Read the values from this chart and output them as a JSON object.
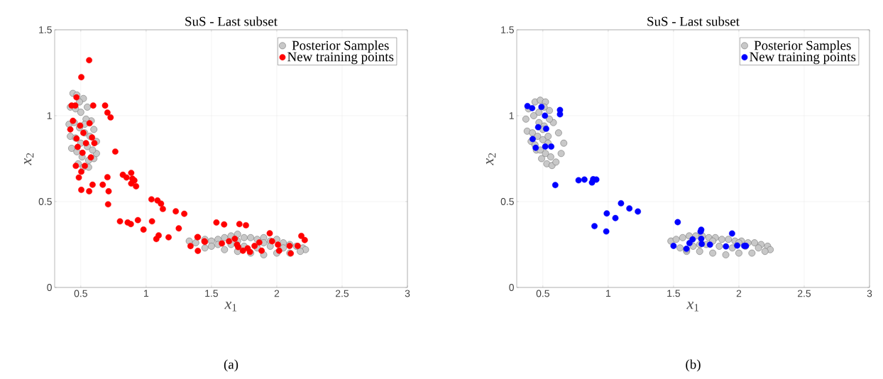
{
  "chart_data": [
    {
      "type": "scatter",
      "title": "SuS - Last subset",
      "xlabel": "*x*$_{1}$",
      "ylabel": "*x*$_{2}$",
      "annotations": [
        "(a)"
      ],
      "xlim": [
        0.3,
        3
      ],
      "ylim": [
        0,
        1.5
      ],
      "xticks": [
        0.5,
        1,
        1.5,
        2,
        2.5,
        3
      ],
      "yticks": [
        0,
        0.5,
        1,
        1.5
      ],
      "grid": true,
      "legend": "top right",
      "marker": "circle",
      "series": [
        {
          "name": "Posterior Samples",
          "color": "#c8c8c8",
          "x": [
            0.44,
            0.47,
            0.42,
            0.41,
            0.42,
            0.43,
            0.48,
            0.52,
            0.56,
            0.6,
            0.62,
            0.62,
            0.6,
            0.58,
            0.55,
            0.52,
            0.46,
            0.5,
            0.54,
            0.45,
            0.49,
            0.53,
            0.57,
            0.46,
            0.5,
            0.55,
            0.59,
            0.47,
            0.51,
            0.56,
            0.49,
            0.53,
            1.33,
            1.38,
            1.45,
            1.5,
            1.55,
            1.6,
            1.65,
            1.7,
            1.75,
            1.8,
            1.85,
            1.9,
            1.95,
            2.0,
            2.05,
            2.1,
            2.15,
            2.2,
            2.22,
            2.18,
            2.1,
            2.0,
            1.9,
            1.8,
            1.7,
            1.6,
            1.5,
            1.45,
            1.65,
            1.75,
            1.85,
            1.95,
            2.05,
            1.55,
            1.7,
            1.9
          ],
          "values": [
            1.13,
            1.12,
            1.05,
            0.95,
            0.88,
            0.81,
            0.72,
            0.7,
            0.7,
            0.75,
            0.78,
            0.85,
            0.92,
            0.97,
            1.05,
            1.1,
            1.04,
            1.02,
            0.98,
            0.96,
            0.93,
            0.9,
            0.88,
            0.87,
            0.84,
            0.82,
            0.8,
            0.79,
            0.76,
            0.74,
            1.08,
            0.95,
            0.27,
            0.26,
            0.28,
            0.27,
            0.28,
            0.29,
            0.3,
            0.31,
            0.29,
            0.29,
            0.28,
            0.29,
            0.27,
            0.28,
            0.26,
            0.25,
            0.24,
            0.23,
            0.22,
            0.21,
            0.2,
            0.2,
            0.19,
            0.2,
            0.21,
            0.22,
            0.24,
            0.23,
            0.25,
            0.24,
            0.23,
            0.24,
            0.23,
            0.25,
            0.27,
            0.26
          ]
        },
        {
          "name": "New training points",
          "color": "#ff0000",
          "x": [
            0.564,
            0.504,
            0.467,
            0.595,
            0.686,
            0.704,
            0.728,
            0.43,
            0.458,
            0.44,
            0.495,
            0.567,
            0.42,
            0.52,
            0.586,
            0.467,
            0.54,
            0.604,
            0.476,
            0.513,
            0.577,
            0.462,
            0.531,
            0.504,
            0.485,
            0.504,
            0.564,
            0.59,
            0.668,
            0.704,
            0.713,
            0.709,
            0.764,
            0.822,
            0.85,
            0.886,
            0.895,
            0.91,
            0.886,
            0.923,
            0.8,
            0.859,
            0.883,
            0.937,
            0.98,
            1.041,
            1.087,
            1.114,
            1.128,
            1.045,
            1.096,
            1.078,
            1.172,
            1.227,
            1.292,
            1.25,
            1.34,
            1.396,
            1.396,
            1.45,
            1.538,
            1.597,
            1.714,
            1.764,
            1.946,
            2.188,
            2.214,
            1.393,
            1.446,
            1.58,
            1.634,
            1.679,
            1.696,
            1.741,
            1.795,
            1.83,
            1.866,
            1.884,
            1.964,
            2.009,
            2.018,
            2.098,
            2.107,
            2.16,
            1.705,
            1.777
          ],
          "values": [
            1.323,
            1.224,
            1.107,
            1.059,
            1.059,
            1.018,
            0.99,
            1.059,
            1.059,
            0.97,
            0.942,
            0.956,
            0.92,
            0.9,
            0.873,
            0.867,
            0.84,
            0.84,
            0.818,
            0.784,
            0.757,
            0.708,
            0.708,
            0.674,
            0.64,
            0.568,
            0.56,
            0.598,
            0.598,
            0.642,
            0.56,
            0.484,
            0.791,
            0.656,
            0.64,
            0.667,
            0.633,
            0.623,
            0.605,
            0.589,
            0.385,
            0.378,
            0.369,
            0.392,
            0.337,
            0.513,
            0.506,
            0.488,
            0.457,
            0.385,
            0.303,
            0.282,
            0.292,
            0.443,
            0.429,
            0.344,
            0.241,
            0.293,
            0.213,
            0.265,
            0.378,
            0.367,
            0.369,
            0.362,
            0.315,
            0.3,
            0.276,
            0.293,
            0.269,
            0.256,
            0.269,
            0.283,
            0.249,
            0.214,
            0.207,
            0.242,
            0.262,
            0.214,
            0.269,
            0.249,
            0.214,
            0.242,
            0.198,
            0.242,
            0.235,
            0.228
          ]
        }
      ]
    },
    {
      "type": "scatter",
      "title": "SuS - Last subset",
      "xlabel": "*x*$_{1}$",
      "ylabel": "*x*$_{2}$",
      "annotations": [
        "(b)"
      ],
      "xlim": [
        0.3,
        3
      ],
      "ylim": [
        0,
        1.5
      ],
      "xticks": [
        0.5,
        1,
        1.5,
        2,
        2.5,
        3
      ],
      "yticks": [
        0,
        0.5,
        1,
        1.5
      ],
      "grid": true,
      "legend": "top right",
      "marker": "circle",
      "series": [
        {
          "name": "Posterior Samples",
          "color": "#c8c8c8",
          "x": [
            0.44,
            0.48,
            0.52,
            0.39,
            0.37,
            0.38,
            0.41,
            0.45,
            0.49,
            0.53,
            0.57,
            0.6,
            0.64,
            0.66,
            0.62,
            0.58,
            0.55,
            0.43,
            0.47,
            0.51,
            0.42,
            0.46,
            0.5,
            0.54,
            0.44,
            0.48,
            0.52,
            0.56,
            0.47,
            0.51,
            0.55,
            0.5,
            0.54,
            1.48,
            1.52,
            1.57,
            1.62,
            1.67,
            1.72,
            1.77,
            1.82,
            1.87,
            1.92,
            1.97,
            2.02,
            2.07,
            2.12,
            2.17,
            2.22,
            2.24,
            2.2,
            2.1,
            2.0,
            1.9,
            1.8,
            1.7,
            1.6,
            1.55,
            1.65,
            1.75,
            1.85,
            1.95,
            2.05,
            2.15,
            1.6,
            1.8,
            2.0,
            1.7
          ],
          "values": [
            1.08,
            1.09,
            1.08,
            1.04,
            0.98,
            0.91,
            0.85,
            0.8,
            0.75,
            0.72,
            0.71,
            0.73,
            0.78,
            0.84,
            0.9,
            0.96,
            1.03,
            1.0,
            0.96,
            0.94,
            0.9,
            0.88,
            0.86,
            0.84,
            0.83,
            0.8,
            0.78,
            0.76,
            1.02,
            1.05,
            0.98,
            0.92,
            0.88,
            0.27,
            0.28,
            0.29,
            0.3,
            0.3,
            0.3,
            0.29,
            0.29,
            0.28,
            0.28,
            0.27,
            0.27,
            0.26,
            0.26,
            0.25,
            0.24,
            0.22,
            0.21,
            0.2,
            0.2,
            0.19,
            0.2,
            0.21,
            0.21,
            0.23,
            0.24,
            0.25,
            0.24,
            0.23,
            0.24,
            0.23,
            0.22,
            0.27,
            0.26,
            0.25
          ]
        },
        {
          "name": "New training points",
          "color": "#0000ff",
          "x": [
            0.382,
            0.418,
            0.489,
            0.516,
            0.631,
            0.631,
            0.464,
            0.525,
            0.422,
            0.445,
            0.518,
            0.564,
            0.595,
            0.773,
            0.818,
            0.876,
            0.885,
            0.909,
            1.098,
            1.162,
            1.227,
            0.989,
            1.055,
            0.895,
            0.985,
            1.532,
            1.5,
            1.599,
            1.622,
            1.646,
            1.707,
            1.712,
            1.712,
            1.716,
            1.779,
            1.901,
            1.948,
            1.987,
            2.041,
            2.054
          ],
          "values": [
            1.056,
            1.044,
            1.051,
            1.0,
            1.033,
            1.008,
            0.933,
            0.924,
            0.864,
            0.813,
            0.82,
            0.82,
            0.596,
            0.624,
            0.628,
            0.611,
            0.63,
            0.628,
            0.49,
            0.46,
            0.442,
            0.431,
            0.404,
            0.357,
            0.326,
            0.38,
            0.242,
            0.225,
            0.258,
            0.28,
            0.325,
            0.336,
            0.283,
            0.253,
            0.249,
            0.239,
            0.314,
            0.244,
            0.242,
            0.242
          ]
        }
      ]
    }
  ]
}
